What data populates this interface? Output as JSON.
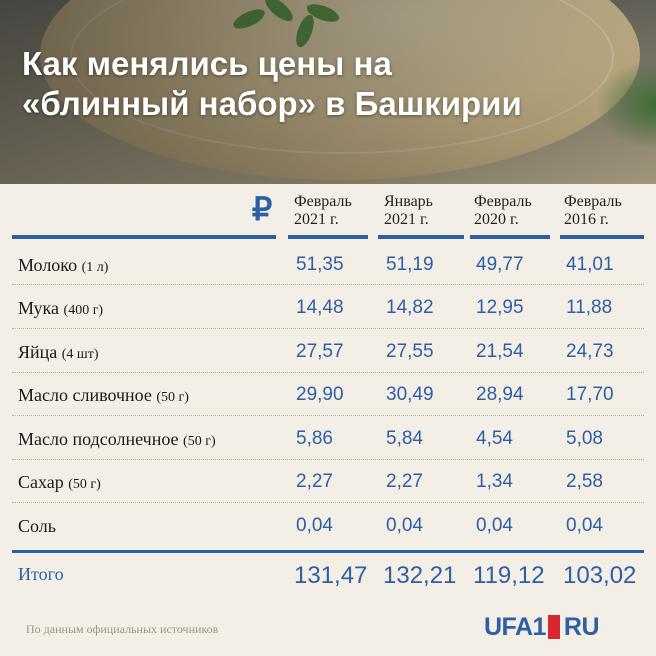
{
  "title": {
    "line1": "Как менялись цены на",
    "line2": "«блинный набор» в Башкирии"
  },
  "currency_symbol": "₽",
  "columns": [
    {
      "line1": "Февраль",
      "line2": "2021 г."
    },
    {
      "line1": "Январь",
      "line2": "2021 г."
    },
    {
      "line1": "Февраль",
      "line2": "2020 г."
    },
    {
      "line1": "Февраль",
      "line2": "2016 г."
    }
  ],
  "rows": [
    {
      "name": "Молоко",
      "unit": "(1 л)",
      "values": [
        "51,35",
        "51,19",
        "49,77",
        "41,01"
      ]
    },
    {
      "name": "Мука",
      "unit": "(400 г)",
      "values": [
        "14,48",
        "14,82",
        "12,95",
        "11,88"
      ]
    },
    {
      "name": "Яйца",
      "unit": "(4 шт)",
      "values": [
        "27,57",
        "27,55",
        "21,54",
        "24,73"
      ]
    },
    {
      "name": "Масло сливочное",
      "unit": "(50 г)",
      "values": [
        "29,90",
        "30,49",
        "28,94",
        "17,70"
      ]
    },
    {
      "name": "Масло подсолнечное",
      "unit": "(50 г)",
      "values": [
        "5,86",
        "5,84",
        "4,54",
        "5,08"
      ]
    },
    {
      "name": "Сахар",
      "unit": "(50 г)",
      "values": [
        "2,27",
        "2,27",
        "1,34",
        "2,58"
      ]
    },
    {
      "name": "Соль",
      "unit": "",
      "values": [
        "0,04",
        "0,04",
        "0,04",
        "0,04"
      ]
    }
  ],
  "total": {
    "label": "Итого",
    "values": [
      "131,47",
      "132,21",
      "119,12",
      "103,02"
    ]
  },
  "source": "По данным официальных источников",
  "logo": {
    "left": "UFA1",
    "right": "RU"
  },
  "colors": {
    "accent": "#2c5fa3",
    "brand_red": "#d7282f",
    "background": "#f4efe6"
  }
}
